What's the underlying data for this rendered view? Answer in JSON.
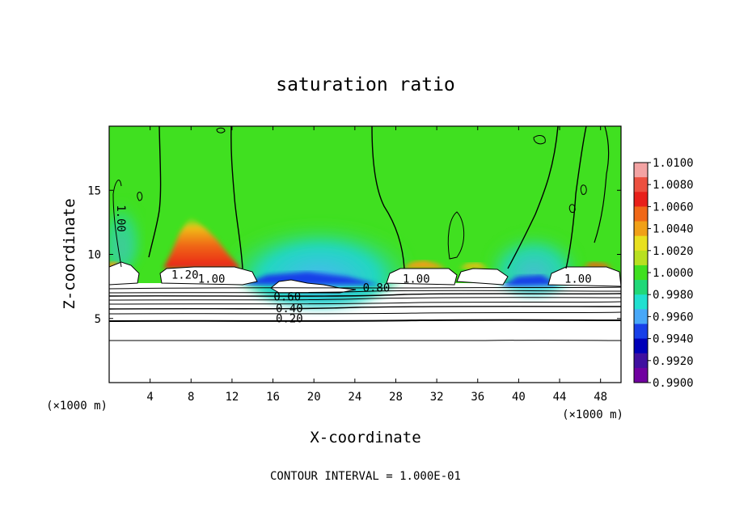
{
  "chart_data": {
    "type": "heatmap",
    "title": "saturation ratio",
    "xlabel": "X-coordinate",
    "ylabel": "Z-coordinate",
    "x_unit_left": "(×1000 m)",
    "x_unit_right": "(×1000 m)",
    "xlim": [
      0,
      50
    ],
    "ylim": [
      0,
      20
    ],
    "x_ticks": [
      4,
      8,
      12,
      16,
      20,
      24,
      28,
      32,
      36,
      40,
      44,
      48
    ],
    "y_ticks": [
      5,
      10,
      15
    ],
    "grid": false,
    "colorbar": {
      "placement": "right",
      "levels": [
        "1.0100",
        "1.0080",
        "1.0060",
        "1.0040",
        "1.0020",
        "1.0000",
        "0.9980",
        "0.9960",
        "0.9940",
        "0.9920",
        "0.9900"
      ],
      "colors": [
        "#f3a3a3",
        "#ec5040",
        "#e8201a",
        "#f06818",
        "#f0a018",
        "#e8e020",
        "#b8e020",
        "#40e020",
        "#20d878",
        "#20e0d0",
        "#48a8f8",
        "#1840e8",
        "#0000b8",
        "#4010a0",
        "#7000a0"
      ]
    },
    "contour_labels": [
      {
        "text": "1.00",
        "x": 0.8,
        "y": 12.8
      },
      {
        "text": "1.20",
        "x": 7.4,
        "y": 8.1
      },
      {
        "text": "1.00",
        "x": 10.0,
        "y": 7.8
      },
      {
        "text": "0.80",
        "x": 26.1,
        "y": 7.1
      },
      {
        "text": "1.00",
        "x": 30.0,
        "y": 7.8
      },
      {
        "text": "1.00",
        "x": 45.8,
        "y": 7.8
      },
      {
        "text": "0.60",
        "x": 17.4,
        "y": 6.4
      },
      {
        "text": "0.40",
        "x": 17.6,
        "y": 5.5
      },
      {
        "text": "0.20",
        "x": 17.6,
        "y": 4.7
      }
    ],
    "annotation": "CONTOUR INTERVAL = 1.000E-01"
  }
}
